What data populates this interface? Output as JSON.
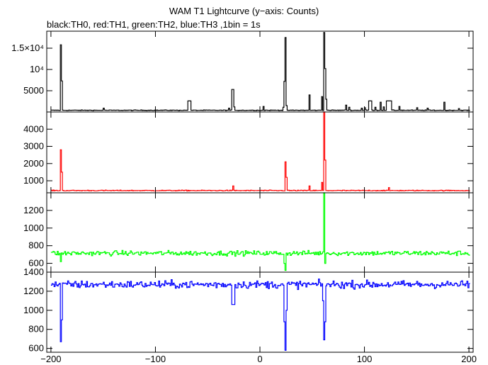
{
  "title": "WAM T1 Lightcurve (y−axis: Counts)",
  "subtitle": "black:TH0, red:TH1, green:TH2, blue:TH3 ,1bin = 1s",
  "chart_data": {
    "type": "line",
    "title": "WAM T1 Lightcurve (y−axis: Counts)",
    "subtitle": "black:TH0, red:TH1, green:TH2, blue:TH3 ,1bin = 1s",
    "xlim": [
      -204,
      204
    ],
    "xticks": [
      -200,
      -100,
      0,
      100,
      200
    ],
    "xtick_labels": [
      "−200",
      "−100",
      "0",
      "100",
      "200"
    ],
    "grid": false,
    "panels": [
      {
        "name": "TH0",
        "color": "#000000",
        "ylim": [
          0,
          19000
        ],
        "yticks": [
          5000,
          10000,
          15000
        ],
        "ytick_labels": [
          "5000",
          "10⁴",
          "1.5×10⁴"
        ],
        "baseline": 400,
        "noise": 80,
        "features": [
          {
            "x": -191.5,
            "value": 15800,
            "width": 1
          },
          {
            "x": -190,
            "value": 7300,
            "width": 1
          },
          {
            "x": -150,
            "value": 900,
            "width": 1
          },
          {
            "x": -68,
            "value": 2600,
            "width": 2
          },
          {
            "x": -30,
            "value": 900,
            "width": 1
          },
          {
            "x": -26,
            "value": 5300,
            "width": 2
          },
          {
            "x": -25,
            "value": 1200,
            "width": 1
          },
          {
            "x": 3,
            "value": 1300,
            "width": 1
          },
          {
            "x": 22,
            "value": 1100,
            "width": 1
          },
          {
            "x": 23.5,
            "value": 17500,
            "width": 1
          },
          {
            "x": 22.5,
            "value": 7200,
            "width": 1
          },
          {
            "x": 25,
            "value": 1500,
            "width": 1
          },
          {
            "x": 47,
            "value": 4000,
            "width": 1
          },
          {
            "x": 59,
            "value": 3600,
            "width": 1
          },
          {
            "x": 61,
            "value": 18700,
            "width": 1
          },
          {
            "x": 62,
            "value": 10200,
            "width": 1
          },
          {
            "x": 63,
            "value": 3000,
            "width": 1
          },
          {
            "x": 82,
            "value": 1600,
            "width": 1
          },
          {
            "x": 85,
            "value": 1100,
            "width": 1
          },
          {
            "x": 97,
            "value": 900,
            "width": 1
          },
          {
            "x": 100,
            "value": 1000,
            "width": 1
          },
          {
            "x": 105,
            "value": 2600,
            "width": 2
          },
          {
            "x": 110,
            "value": 1100,
            "width": 1
          },
          {
            "x": 115,
            "value": 2300,
            "width": 1
          },
          {
            "x": 118,
            "value": 1200,
            "width": 1
          },
          {
            "x": 123,
            "value": 2600,
            "width": 3
          },
          {
            "x": 133,
            "value": 1300,
            "width": 1
          },
          {
            "x": 150,
            "value": 1000,
            "width": 1
          },
          {
            "x": 160,
            "value": 900,
            "width": 1
          },
          {
            "x": 176,
            "value": 2300,
            "width": 1
          },
          {
            "x": 190,
            "value": 800,
            "width": 1
          }
        ]
      },
      {
        "name": "TH1",
        "color": "#ff0000",
        "ylim": [
          300,
          5000
        ],
        "yticks": [
          1000,
          2000,
          3000,
          4000
        ],
        "ytick_labels": [
          "1000",
          "2000",
          "3000",
          "4000"
        ],
        "baseline": 430,
        "noise": 25,
        "features": [
          {
            "x": -191.5,
            "value": 2800,
            "width": 1
          },
          {
            "x": -190.5,
            "value": 1500,
            "width": 1
          },
          {
            "x": -26,
            "value": 700,
            "width": 1
          },
          {
            "x": 23.5,
            "value": 2100,
            "width": 1
          },
          {
            "x": 24.5,
            "value": 1200,
            "width": 1
          },
          {
            "x": 47,
            "value": 700,
            "width": 1
          },
          {
            "x": 59,
            "value": 900,
            "width": 1
          },
          {
            "x": 61,
            "value": 5000,
            "width": 1
          },
          {
            "x": 62,
            "value": 2200,
            "width": 1
          },
          {
            "x": 123,
            "value": 600,
            "width": 1
          }
        ]
      },
      {
        "name": "TH2",
        "color": "#00ff00",
        "ylim": [
          500,
          1400
        ],
        "yticks": [
          600,
          800,
          1000,
          1200
        ],
        "ytick_labels": [
          "600",
          "800",
          "1000",
          "1200"
        ],
        "baseline": 715,
        "noise": 28,
        "features": [
          {
            "x": -191,
            "value": 620,
            "width": 1
          },
          {
            "x": 23.5,
            "value": 520,
            "width": 1
          },
          {
            "x": 22.5,
            "value": 600,
            "width": 1
          },
          {
            "x": 61,
            "value": 1400,
            "width": 1
          },
          {
            "x": 62,
            "value": 600,
            "width": 1
          }
        ]
      },
      {
        "name": "TH3",
        "color": "#0000ff",
        "ylim": [
          560,
          1400
        ],
        "yticks": [
          600,
          800,
          1000,
          1200,
          1400
        ],
        "ytick_labels": [
          "600",
          "800",
          "1000",
          "1200",
          "1400"
        ],
        "baseline": 1270,
        "noise": 40,
        "features": [
          {
            "x": -191.5,
            "value": 670,
            "width": 1
          },
          {
            "x": -190.5,
            "value": 900,
            "width": 1
          },
          {
            "x": -26,
            "value": 1060,
            "width": 2
          },
          {
            "x": 23.5,
            "value": 580,
            "width": 1
          },
          {
            "x": 22.5,
            "value": 880,
            "width": 1
          },
          {
            "x": 24.5,
            "value": 1000,
            "width": 1
          },
          {
            "x": 61,
            "value": 690,
            "width": 1
          },
          {
            "x": 62,
            "value": 880,
            "width": 1
          },
          {
            "x": 60,
            "value": 1100,
            "width": 1
          }
        ]
      }
    ]
  }
}
